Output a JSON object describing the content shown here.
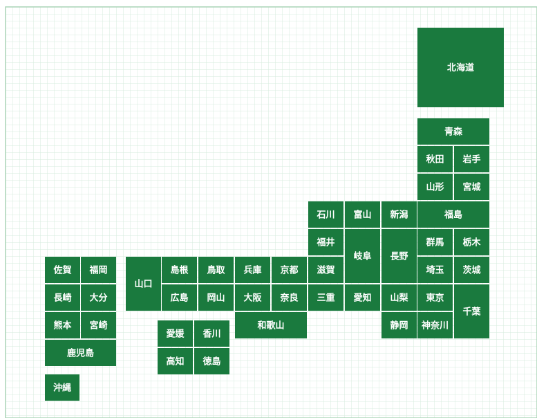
{
  "prefectures": [
    "北海道",
    "青森",
    "秋田",
    "岩手",
    "山形",
    "宮城",
    "石川",
    "富山",
    "新潟",
    "福島",
    "福井",
    "岐阜",
    "長野",
    "群馬",
    "栃木",
    "佐賀",
    "福岡",
    "山口",
    "島根",
    "鳥取",
    "兵庫",
    "京都",
    "滋賀",
    "埼玉",
    "茨城",
    "長崎",
    "大分",
    "広島",
    "岡山",
    "大阪",
    "奈良",
    "三重",
    "愛知",
    "山梨",
    "東京",
    "千葉",
    "熊本",
    "宮崎",
    "愛媛",
    "香川",
    "和歌山",
    "静岡",
    "神奈川",
    "鹿児島",
    "高知",
    "徳島",
    "沖縄"
  ]
}
